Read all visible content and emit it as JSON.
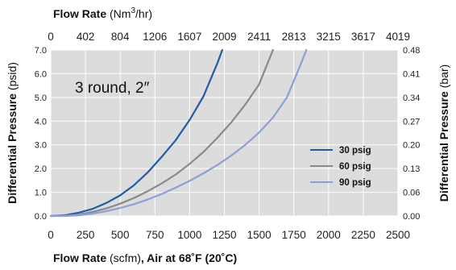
{
  "chart_data": {
    "type": "line",
    "annotation": "3 round, 2″",
    "x_bottom": {
      "label_bold": "Flow Rate",
      "label_unit": " (scfm)",
      "label_tail": ", Air at 68˚F (20˚C)",
      "ticks": [
        "0",
        "250",
        "500",
        "750",
        "1000",
        "1250",
        "1500",
        "1750",
        "2000",
        "2250",
        "2500"
      ],
      "range": [
        0,
        2500
      ]
    },
    "x_top": {
      "label_bold": "Flow Rate",
      "label_unit": " (Nm",
      "label_sup": "3",
      "label_end": "/hr)",
      "ticks": [
        "0",
        "402",
        "804",
        "1206",
        "1607",
        "2009",
        "2411",
        "2813",
        "3215",
        "3617",
        "4019"
      ]
    },
    "y_left": {
      "label_bold": "Differential Pressure",
      "label_unit": " (psid)",
      "ticks": [
        "0.0",
        "1.0",
        "2.0",
        "3.0",
        "4.0",
        "5.0",
        "6.0",
        "7.0"
      ],
      "range": [
        0,
        7
      ]
    },
    "y_right": {
      "label_bold": "Differential Pressure",
      "label_unit": " (bar)",
      "ticks": [
        "0.00",
        "0.06",
        "0.13",
        "0.20",
        "0.27",
        "0.34",
        "0.41",
        "0.48"
      ]
    },
    "grid": true,
    "legend_position": "right",
    "series": [
      {
        "name": "30 psig",
        "color": "#1f5ca8",
        "x": [
          0,
          100,
          200,
          300,
          400,
          500,
          600,
          700,
          800,
          900,
          1000,
          1100,
          1200,
          1235
        ],
        "y": [
          0,
          0.03,
          0.14,
          0.3,
          0.55,
          0.87,
          1.3,
          1.85,
          2.5,
          3.2,
          4.05,
          5.05,
          6.45,
          7.0
        ]
      },
      {
        "name": "60 psig",
        "color": "#8a8a8a",
        "x": [
          0,
          100,
          200,
          300,
          400,
          500,
          600,
          700,
          800,
          900,
          1000,
          1100,
          1200,
          1300,
          1400,
          1500,
          1600
        ],
        "y": [
          0,
          0.01,
          0.06,
          0.17,
          0.32,
          0.52,
          0.76,
          1.05,
          1.38,
          1.75,
          2.2,
          2.7,
          3.3,
          3.95,
          4.7,
          5.55,
          7.0
        ]
      },
      {
        "name": "90 psig",
        "color": "#8d9fd8",
        "x": [
          0,
          100,
          200,
          300,
          400,
          500,
          600,
          700,
          800,
          900,
          1000,
          1100,
          1200,
          1300,
          1400,
          1500,
          1600,
          1700,
          1800,
          1840
        ],
        "y": [
          0,
          0.0,
          0.03,
          0.1,
          0.2,
          0.34,
          0.5,
          0.7,
          0.93,
          1.2,
          1.48,
          1.8,
          2.15,
          2.55,
          3.0,
          3.52,
          4.15,
          5.0,
          6.4,
          7.0
        ]
      }
    ]
  }
}
